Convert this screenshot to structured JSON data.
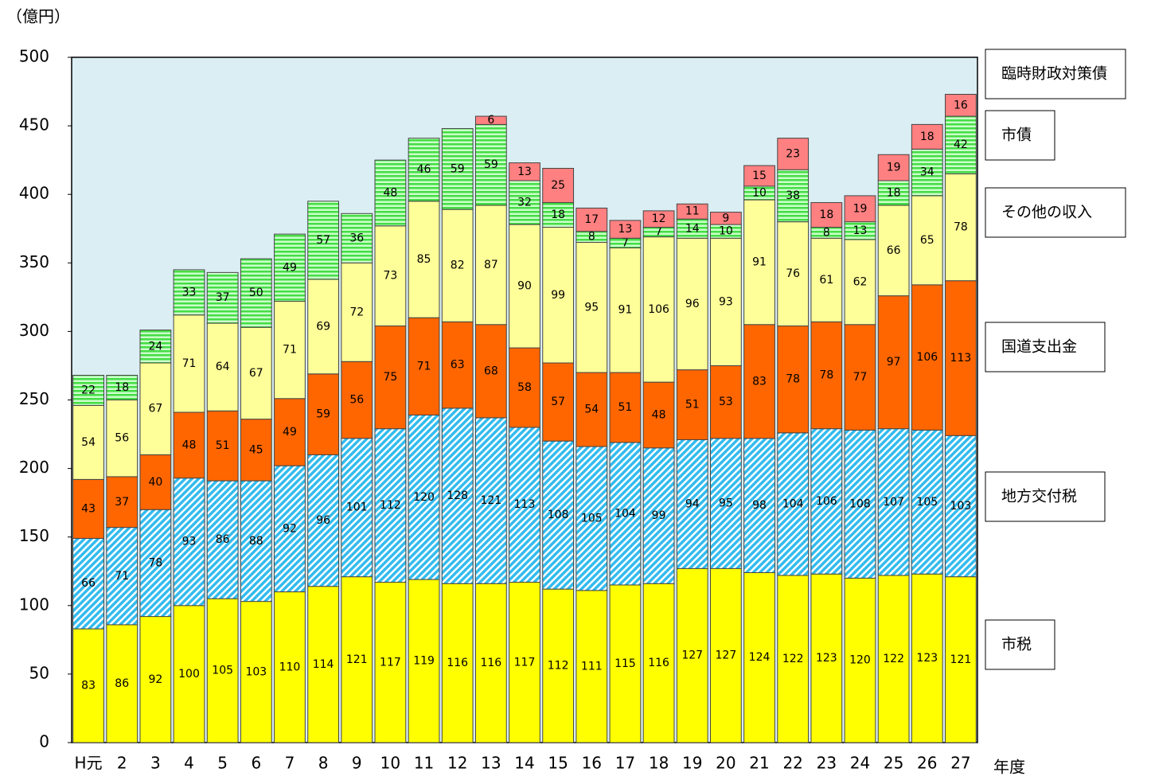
{
  "chart_data": {
    "type": "stacked_bar",
    "y_label": "（億円）",
    "x_label": "年度",
    "categories": [
      "H元",
      "2",
      "3",
      "4",
      "5",
      "6",
      "7",
      "8",
      "9",
      "10",
      "11",
      "12",
      "13",
      "14",
      "15",
      "16",
      "17",
      "18",
      "19",
      "20",
      "21",
      "22",
      "23",
      "24",
      "25",
      "26",
      "27"
    ],
    "series": [
      {
        "name": "市税",
        "color": "#ffff00",
        "values": [
          83,
          86,
          92,
          100,
          105,
          103,
          110,
          114,
          121,
          117,
          119,
          116,
          116,
          117,
          112,
          111,
          115,
          116,
          127,
          127,
          124,
          122,
          123,
          120,
          122,
          123,
          121
        ]
      },
      {
        "name": "地方交付税",
        "color": "#33bbee",
        "pattern": "diagonal",
        "values": [
          66,
          71,
          78,
          93,
          86,
          88,
          92,
          96,
          101,
          112,
          120,
          128,
          121,
          113,
          108,
          105,
          104,
          99,
          94,
          95,
          98,
          104,
          106,
          108,
          107,
          105,
          103
        ]
      },
      {
        "name": "国道支出金",
        "color": "#ff6600",
        "values": [
          43,
          37,
          40,
          48,
          51,
          45,
          49,
          59,
          56,
          75,
          71,
          63,
          68,
          58,
          57,
          54,
          51,
          48,
          51,
          53,
          83,
          78,
          78,
          77,
          97,
          106,
          113
        ]
      },
      {
        "name": "その他の収入",
        "color": "#ffff99",
        "values": [
          54,
          56,
          67,
          71,
          64,
          67,
          71,
          69,
          72,
          73,
          85,
          82,
          87,
          90,
          99,
          95,
          91,
          106,
          96,
          93,
          91,
          76,
          61,
          62,
          66,
          65,
          78
        ]
      },
      {
        "name": "市債",
        "color": "#44dd44",
        "pattern": "horizontal",
        "values": [
          22,
          18,
          24,
          33,
          37,
          50,
          49,
          57,
          36,
          48,
          46,
          59,
          59,
          32,
          18,
          8,
          7,
          7,
          14,
          10,
          10,
          38,
          8,
          13,
          18,
          34,
          42
        ]
      },
      {
        "name": "臨時財政対策債",
        "color": "#ff8080",
        "values": [
          null,
          null,
          null,
          null,
          null,
          null,
          null,
          null,
          null,
          null,
          null,
          null,
          6,
          13,
          25,
          17,
          13,
          12,
          11,
          9,
          15,
          23,
          18,
          19,
          19,
          18,
          16
        ]
      }
    ],
    "ylim": [
      0,
      500
    ],
    "yticks": [
      0,
      50,
      100,
      150,
      200,
      250,
      300,
      350,
      400,
      450,
      500
    ],
    "grid": false,
    "plot_background": "#daeef3"
  }
}
